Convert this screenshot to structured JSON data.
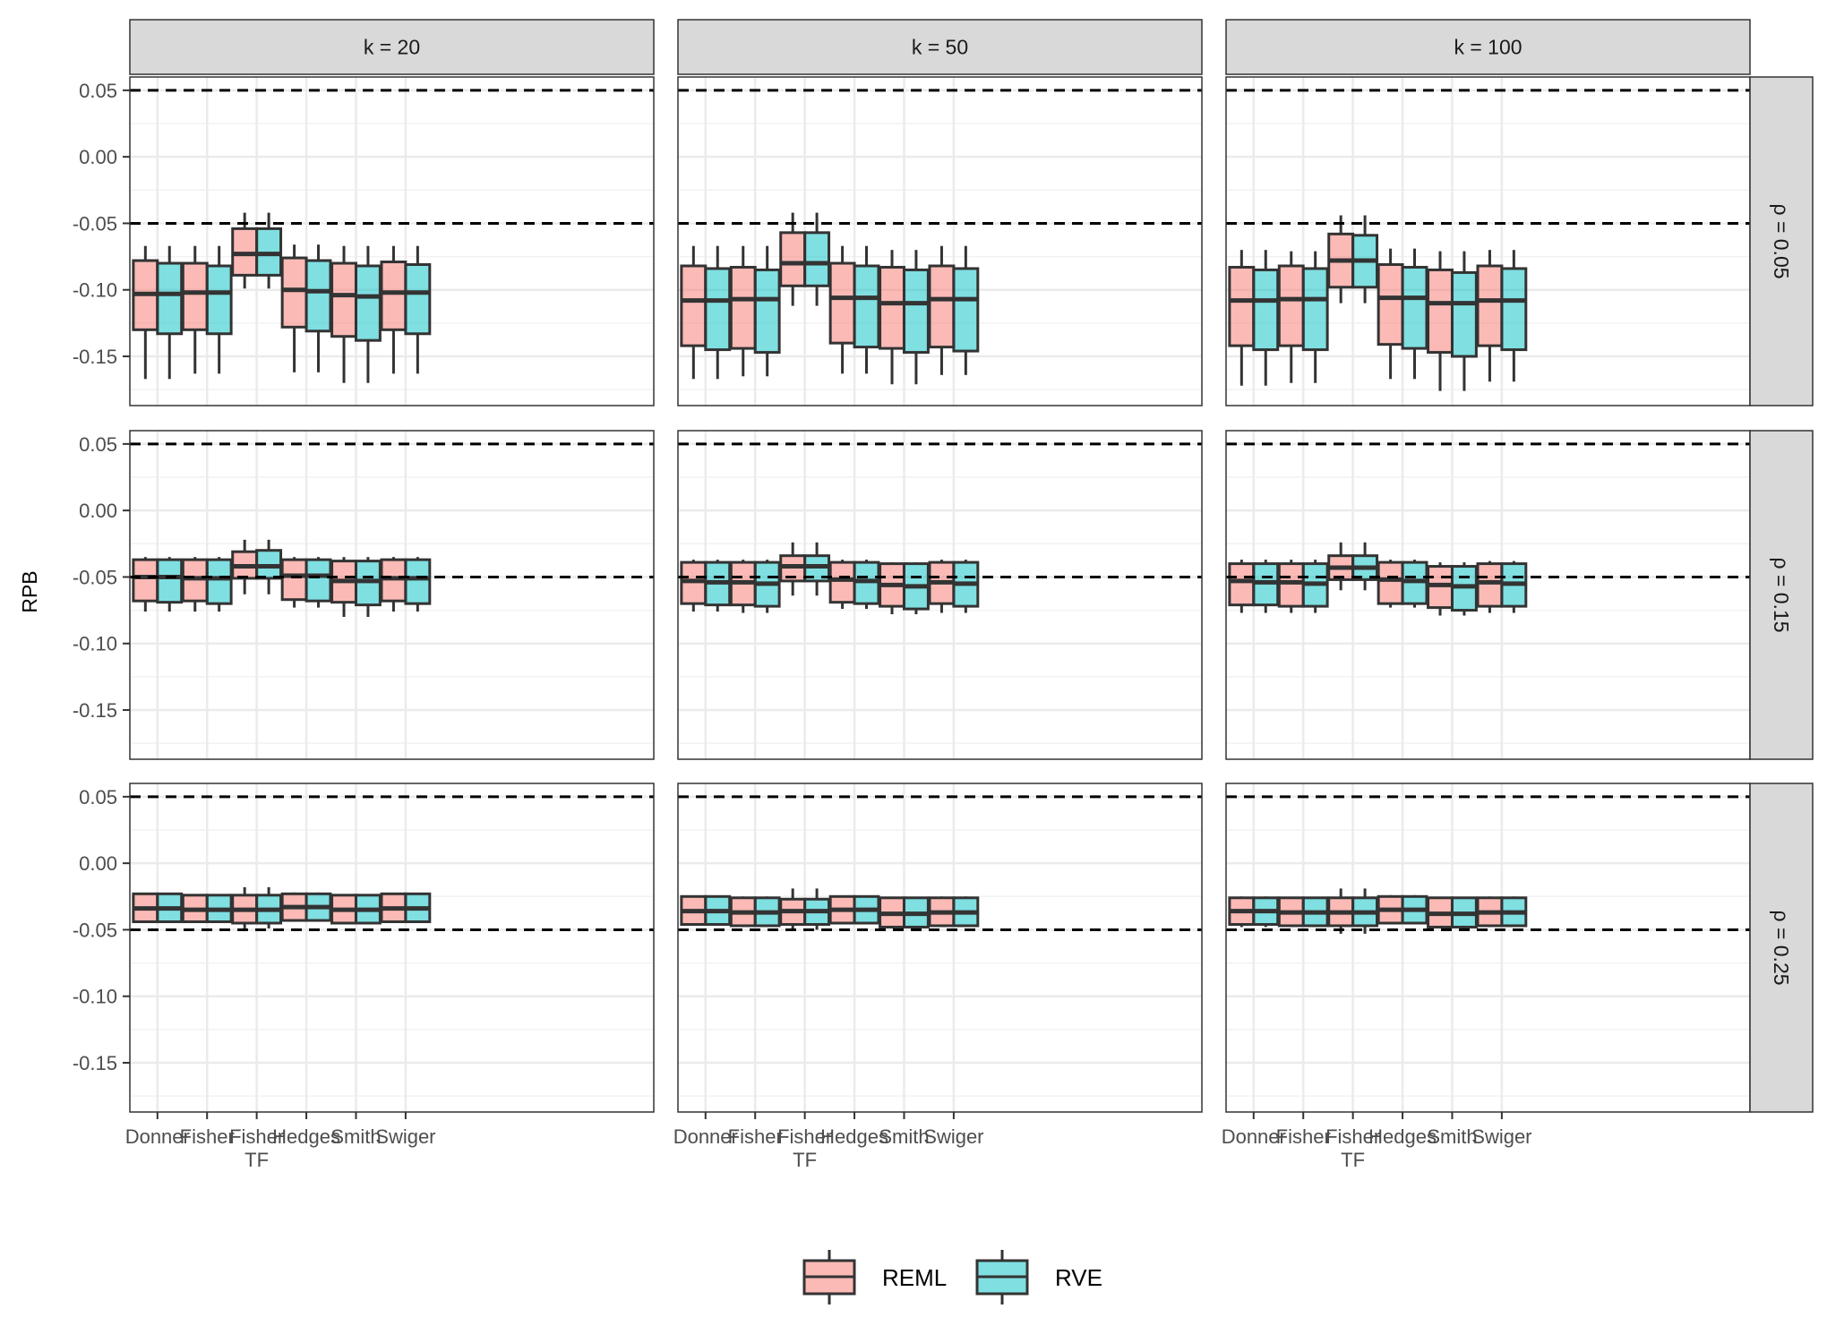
{
  "chart_data": {
    "type": "boxplot",
    "facet_columns": [
      "k = 20",
      "k = 50",
      "k = 100"
    ],
    "facet_rows": [
      "ρ = 0.05",
      "ρ = 0.15",
      "ρ = 0.25"
    ],
    "categories": [
      [
        "Donner"
      ],
      [
        "Fisher"
      ],
      [
        "Fisher",
        "TF"
      ],
      [
        "Hedges"
      ],
      [
        "Smith"
      ],
      [
        "Swiger"
      ]
    ],
    "ylabel": "RPB",
    "xlabel": "",
    "ylim": [
      -0.187,
      0.06
    ],
    "yticks": [
      "0.05",
      "0.00",
      "-0.05",
      "-0.10",
      "-0.15"
    ],
    "ytick_values": [
      0.05,
      0.0,
      -0.05,
      -0.1,
      -0.15
    ],
    "reference_lines": [
      0.05,
      -0.05
    ],
    "series": [
      {
        "name": "REML",
        "color": "#F8766D"
      },
      {
        "name": "RVE",
        "color": "#00BFC4"
      }
    ],
    "legend_position": "bottom",
    "grid": true,
    "boxes": [
      [
        [
          [
            [
              -0.167,
              -0.13,
              -0.103,
              -0.078,
              -0.067
            ],
            [
              -0.167,
              -0.133,
              -0.103,
              -0.08,
              -0.067
            ]
          ],
          [
            [
              -0.163,
              -0.13,
              -0.102,
              -0.08,
              -0.067
            ],
            [
              -0.163,
              -0.133,
              -0.102,
              -0.082,
              -0.067
            ]
          ],
          [
            [
              -0.099,
              -0.089,
              -0.073,
              -0.054,
              -0.042
            ],
            [
              -0.099,
              -0.089,
              -0.073,
              -0.054,
              -0.042
            ]
          ],
          [
            [
              -0.162,
              -0.128,
              -0.1,
              -0.076,
              -0.066
            ],
            [
              -0.162,
              -0.131,
              -0.101,
              -0.078,
              -0.066
            ]
          ],
          [
            [
              -0.17,
              -0.135,
              -0.104,
              -0.08,
              -0.067
            ],
            [
              -0.17,
              -0.138,
              -0.105,
              -0.082,
              -0.067
            ]
          ],
          [
            [
              -0.163,
              -0.13,
              -0.102,
              -0.079,
              -0.067
            ],
            [
              -0.163,
              -0.133,
              -0.102,
              -0.081,
              -0.067
            ]
          ]
        ],
        [
          [
            [
              -0.167,
              -0.142,
              -0.108,
              -0.082,
              -0.067
            ],
            [
              -0.167,
              -0.145,
              -0.108,
              -0.084,
              -0.067
            ]
          ],
          [
            [
              -0.165,
              -0.144,
              -0.107,
              -0.083,
              -0.067
            ],
            [
              -0.165,
              -0.147,
              -0.107,
              -0.085,
              -0.067
            ]
          ],
          [
            [
              -0.112,
              -0.097,
              -0.08,
              -0.057,
              -0.042
            ],
            [
              -0.112,
              -0.097,
              -0.08,
              -0.057,
              -0.042
            ]
          ],
          [
            [
              -0.163,
              -0.14,
              -0.106,
              -0.08,
              -0.067
            ],
            [
              -0.163,
              -0.143,
              -0.106,
              -0.082,
              -0.067
            ]
          ],
          [
            [
              -0.171,
              -0.144,
              -0.11,
              -0.083,
              -0.07
            ],
            [
              -0.171,
              -0.147,
              -0.11,
              -0.085,
              -0.07
            ]
          ],
          [
            [
              -0.164,
              -0.143,
              -0.107,
              -0.082,
              -0.067
            ],
            [
              -0.164,
              -0.146,
              -0.107,
              -0.084,
              -0.067
            ]
          ]
        ],
        [
          [
            [
              -0.172,
              -0.142,
              -0.108,
              -0.083,
              -0.07
            ],
            [
              -0.172,
              -0.145,
              -0.108,
              -0.085,
              -0.07
            ]
          ],
          [
            [
              -0.17,
              -0.142,
              -0.107,
              -0.082,
              -0.071
            ],
            [
              -0.17,
              -0.145,
              -0.107,
              -0.084,
              -0.071
            ]
          ],
          [
            [
              -0.11,
              -0.098,
              -0.078,
              -0.058,
              -0.044
            ],
            [
              -0.11,
              -0.098,
              -0.078,
              -0.059,
              -0.044
            ]
          ],
          [
            [
              -0.167,
              -0.141,
              -0.106,
              -0.081,
              -0.069
            ],
            [
              -0.167,
              -0.144,
              -0.106,
              -0.083,
              -0.069
            ]
          ],
          [
            [
              -0.176,
              -0.147,
              -0.11,
              -0.085,
              -0.071
            ],
            [
              -0.176,
              -0.15,
              -0.11,
              -0.087,
              -0.071
            ]
          ],
          [
            [
              -0.169,
              -0.142,
              -0.108,
              -0.082,
              -0.07
            ],
            [
              -0.169,
              -0.145,
              -0.108,
              -0.084,
              -0.07
            ]
          ]
        ]
      ],
      [
        [
          [
            [
              -0.076,
              -0.068,
              -0.05,
              -0.037,
              -0.035
            ],
            [
              -0.076,
              -0.069,
              -0.05,
              -0.037,
              -0.035
            ]
          ],
          [
            [
              -0.076,
              -0.068,
              -0.051,
              -0.037,
              -0.035
            ],
            [
              -0.076,
              -0.07,
              -0.051,
              -0.037,
              -0.035
            ]
          ],
          [
            [
              -0.063,
              -0.051,
              -0.042,
              -0.031,
              -0.022
            ],
            [
              -0.063,
              -0.051,
              -0.042,
              -0.03,
              -0.022
            ]
          ],
          [
            [
              -0.073,
              -0.067,
              -0.049,
              -0.037,
              -0.035
            ],
            [
              -0.073,
              -0.068,
              -0.049,
              -0.037,
              -0.035
            ]
          ],
          [
            [
              -0.08,
              -0.069,
              -0.053,
              -0.038,
              -0.035
            ],
            [
              -0.08,
              -0.071,
              -0.053,
              -0.038,
              -0.035
            ]
          ],
          [
            [
              -0.076,
              -0.068,
              -0.051,
              -0.037,
              -0.035
            ],
            [
              -0.076,
              -0.07,
              -0.051,
              -0.037,
              -0.035
            ]
          ]
        ],
        [
          [
            [
              -0.076,
              -0.07,
              -0.053,
              -0.039,
              -0.037
            ],
            [
              -0.076,
              -0.071,
              -0.054,
              -0.039,
              -0.037
            ]
          ],
          [
            [
              -0.077,
              -0.071,
              -0.054,
              -0.039,
              -0.037
            ],
            [
              -0.077,
              -0.072,
              -0.055,
              -0.039,
              -0.037
            ]
          ],
          [
            [
              -0.064,
              -0.053,
              -0.042,
              -0.034,
              -0.024
            ],
            [
              -0.064,
              -0.053,
              -0.042,
              -0.034,
              -0.024
            ]
          ],
          [
            [
              -0.074,
              -0.069,
              -0.052,
              -0.039,
              -0.037
            ],
            [
              -0.074,
              -0.07,
              -0.053,
              -0.039,
              -0.037
            ]
          ],
          [
            [
              -0.078,
              -0.072,
              -0.056,
              -0.04,
              -0.039
            ],
            [
              -0.078,
              -0.074,
              -0.057,
              -0.04,
              -0.039
            ]
          ],
          [
            [
              -0.077,
              -0.07,
              -0.054,
              -0.039,
              -0.037
            ],
            [
              -0.077,
              -0.072,
              -0.055,
              -0.039,
              -0.037
            ]
          ]
        ],
        [
          [
            [
              -0.077,
              -0.071,
              -0.053,
              -0.04,
              -0.037
            ],
            [
              -0.077,
              -0.071,
              -0.054,
              -0.04,
              -0.037
            ]
          ],
          [
            [
              -0.077,
              -0.072,
              -0.054,
              -0.04,
              -0.037
            ],
            [
              -0.077,
              -0.072,
              -0.055,
              -0.04,
              -0.037
            ]
          ],
          [
            [
              -0.06,
              -0.052,
              -0.043,
              -0.034,
              -0.024
            ],
            [
              -0.06,
              -0.052,
              -0.043,
              -0.034,
              -0.024
            ]
          ],
          [
            [
              -0.073,
              -0.07,
              -0.052,
              -0.039,
              -0.037
            ],
            [
              -0.073,
              -0.07,
              -0.053,
              -0.039,
              -0.037
            ]
          ],
          [
            [
              -0.079,
              -0.073,
              -0.056,
              -0.042,
              -0.039
            ],
            [
              -0.079,
              -0.075,
              -0.057,
              -0.042,
              -0.039
            ]
          ],
          [
            [
              -0.077,
              -0.072,
              -0.054,
              -0.04,
              -0.038
            ],
            [
              -0.077,
              -0.072,
              -0.055,
              -0.04,
              -0.038
            ]
          ]
        ]
      ],
      [
        [
          [
            [
              -0.045,
              -0.044,
              -0.034,
              -0.023,
              -0.023
            ],
            [
              -0.045,
              -0.044,
              -0.034,
              -0.023,
              -0.023
            ]
          ],
          [
            [
              -0.045,
              -0.044,
              -0.035,
              -0.024,
              -0.024
            ],
            [
              -0.045,
              -0.044,
              -0.035,
              -0.024,
              -0.024
            ]
          ],
          [
            [
              -0.049,
              -0.045,
              -0.035,
              -0.024,
              -0.018
            ],
            [
              -0.049,
              -0.045,
              -0.035,
              -0.024,
              -0.018
            ]
          ],
          [
            [
              -0.044,
              -0.043,
              -0.033,
              -0.023,
              -0.022
            ],
            [
              -0.044,
              -0.043,
              -0.033,
              -0.023,
              -0.022
            ]
          ],
          [
            [
              -0.046,
              -0.045,
              -0.035,
              -0.024,
              -0.024
            ],
            [
              -0.046,
              -0.045,
              -0.035,
              -0.024,
              -0.024
            ]
          ],
          [
            [
              -0.045,
              -0.044,
              -0.034,
              -0.023,
              -0.023
            ],
            [
              -0.045,
              -0.044,
              -0.034,
              -0.023,
              -0.023
            ]
          ]
        ],
        [
          [
            [
              -0.047,
              -0.046,
              -0.036,
              -0.025,
              -0.025
            ],
            [
              -0.047,
              -0.046,
              -0.036,
              -0.025,
              -0.025
            ]
          ],
          [
            [
              -0.048,
              -0.047,
              -0.037,
              -0.026,
              -0.025
            ],
            [
              -0.048,
              -0.047,
              -0.037,
              -0.026,
              -0.025
            ]
          ],
          [
            [
              -0.05,
              -0.046,
              -0.036,
              -0.027,
              -0.019
            ],
            [
              -0.05,
              -0.046,
              -0.036,
              -0.027,
              -0.019
            ]
          ],
          [
            [
              -0.046,
              -0.045,
              -0.035,
              -0.025,
              -0.025
            ],
            [
              -0.046,
              -0.045,
              -0.035,
              -0.025,
              -0.025
            ]
          ],
          [
            [
              -0.049,
              -0.048,
              -0.038,
              -0.026,
              -0.026
            ],
            [
              -0.049,
              -0.048,
              -0.038,
              -0.026,
              -0.026
            ]
          ],
          [
            [
              -0.048,
              -0.047,
              -0.037,
              -0.026,
              -0.025
            ],
            [
              -0.048,
              -0.047,
              -0.037,
              -0.026,
              -0.025
            ]
          ]
        ],
        [
          [
            [
              -0.048,
              -0.046,
              -0.036,
              -0.026,
              -0.025
            ],
            [
              -0.048,
              -0.046,
              -0.036,
              -0.026,
              -0.025
            ]
          ],
          [
            [
              -0.048,
              -0.047,
              -0.037,
              -0.026,
              -0.026
            ],
            [
              -0.048,
              -0.047,
              -0.037,
              -0.026,
              -0.026
            ]
          ],
          [
            [
              -0.053,
              -0.047,
              -0.037,
              -0.026,
              -0.019
            ],
            [
              -0.053,
              -0.047,
              -0.037,
              -0.026,
              -0.019
            ]
          ],
          [
            [
              -0.046,
              -0.045,
              -0.035,
              -0.025,
              -0.024
            ],
            [
              -0.046,
              -0.045,
              -0.035,
              -0.025,
              -0.024
            ]
          ],
          [
            [
              -0.049,
              -0.048,
              -0.038,
              -0.026,
              -0.026
            ],
            [
              -0.049,
              -0.048,
              -0.038,
              -0.026,
              -0.026
            ]
          ],
          [
            [
              -0.048,
              -0.047,
              -0.037,
              -0.026,
              -0.025
            ],
            [
              -0.048,
              -0.047,
              -0.037,
              -0.026,
              -0.025
            ]
          ]
        ]
      ]
    ]
  }
}
